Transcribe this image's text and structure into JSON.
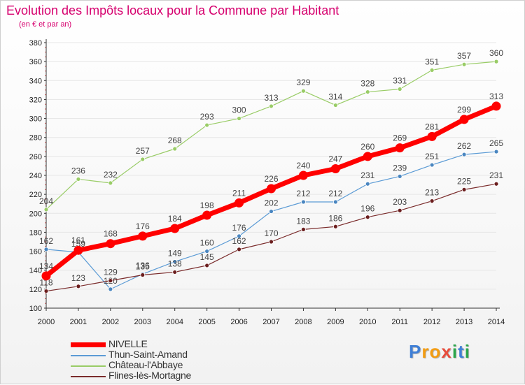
{
  "title": "Evolution des Impôts locaux pour la Commune par Habitant",
  "subtitle": "(en € et par an)",
  "colors": {
    "title": "#d6006e",
    "grid": "#e6e6e6",
    "axis": "#333333"
  },
  "chart_data": {
    "type": "line",
    "categories": [
      "2000",
      "2001",
      "2002",
      "2003",
      "2004",
      "2005",
      "2006",
      "2007",
      "2008",
      "2009",
      "2010",
      "2011",
      "2012",
      "2013",
      "2014"
    ],
    "ylim": [
      100,
      380
    ],
    "yticks": [
      100,
      120,
      140,
      160,
      180,
      200,
      220,
      240,
      260,
      280,
      300,
      320,
      340,
      360,
      380
    ],
    "grid": true,
    "legend_position": "bottom-left",
    "series": [
      {
        "name": "Château-l'Abbaye",
        "color": "#99cc66",
        "marker": "#99cc66",
        "width": 1.2,
        "values": [
          204,
          236,
          232,
          257,
          268,
          293,
          300,
          313,
          329,
          314,
          328,
          331,
          351,
          357,
          360
        ]
      },
      {
        "name": "Thun-Saint-Amand",
        "color": "#5b9bd5",
        "marker": "#4a86c0",
        "width": 1.2,
        "values": [
          162,
          159,
          120,
          136,
          149,
          160,
          176,
          202,
          212,
          212,
          231,
          239,
          251,
          262,
          265
        ]
      },
      {
        "name": "Flines-lès-Mortagne",
        "color": "#7a2b2b",
        "marker": "#6b1e1e",
        "width": 1.2,
        "values": [
          118,
          123,
          129,
          135,
          138,
          145,
          162,
          170,
          183,
          186,
          196,
          203,
          213,
          225,
          231
        ]
      },
      {
        "name": "NIVELLE",
        "color": "#ff0000",
        "marker": "#ff0000",
        "width": 7,
        "values": [
          134,
          161,
          168,
          176,
          184,
          198,
          211,
          226,
          240,
          247,
          260,
          269,
          281,
          299,
          313
        ]
      }
    ]
  },
  "legend": [
    {
      "label": "NIVELLE",
      "color": "#ff0000",
      "thick": true
    },
    {
      "label": "Thun-Saint-Amand",
      "color": "#5b9bd5",
      "thick": false
    },
    {
      "label": "Château-l'Abbaye",
      "color": "#99cc66",
      "thick": false
    },
    {
      "label": "Flines-lès-Mortagne",
      "color": "#7a2b2b",
      "thick": false
    }
  ],
  "logo": {
    "text": "Proxiti",
    "letters": [
      "P",
      "r",
      "o",
      "x",
      "i",
      "t",
      "i"
    ],
    "colors": [
      "#3f7fd6",
      "#f39c12",
      "#f39c12",
      "#e74c3c",
      "#2aa64a",
      "#3f7fd6",
      "#2aa64a"
    ]
  }
}
